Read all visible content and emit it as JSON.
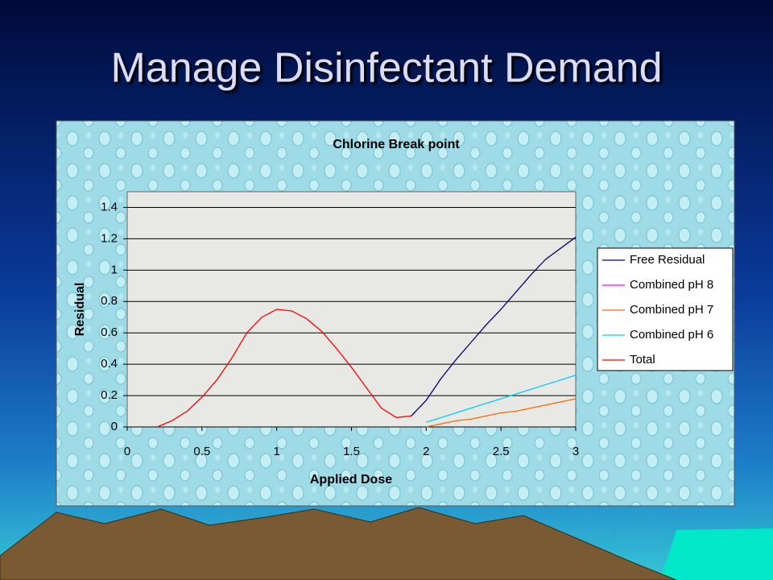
{
  "slide": {
    "title": "Manage Disinfectant Demand"
  },
  "chart_data": {
    "type": "line",
    "title": "Chlorine Break point",
    "x_label": "Applied Dose",
    "y_label": "Residual",
    "x": [
      0.2,
      0.3,
      0.4,
      0.5,
      0.6,
      0.7,
      0.8,
      0.9,
      1.0,
      1.1,
      1.2,
      1.3,
      1.4,
      1.5,
      1.6,
      1.7,
      1.8,
      1.9,
      2.0,
      2.1,
      2.2,
      2.3,
      2.4,
      2.5,
      2.6,
      2.7,
      2.8,
      2.9,
      3.0
    ],
    "series": [
      {
        "name": "Free Residual",
        "color": "#000080",
        "values": [
          null,
          null,
          null,
          null,
          null,
          null,
          null,
          null,
          null,
          null,
          null,
          null,
          null,
          null,
          null,
          null,
          null,
          0.07,
          0.17,
          0.31,
          0.43,
          0.54,
          0.65,
          0.75,
          0.86,
          0.97,
          1.07,
          1.14,
          1.21
        ]
      },
      {
        "name": "Combined pH 8",
        "color": "#ff00ff",
        "values": [
          null,
          null,
          null,
          null,
          null,
          null,
          null,
          null,
          null,
          null,
          null,
          null,
          null,
          null,
          null,
          null,
          null,
          null,
          null,
          null,
          null,
          null,
          null,
          null,
          null,
          null,
          null,
          null,
          null
        ]
      },
      {
        "name": "Combined pH 7",
        "color": "#ff6600",
        "values": [
          null,
          null,
          null,
          null,
          null,
          null,
          null,
          null,
          null,
          null,
          null,
          null,
          null,
          null,
          null,
          null,
          null,
          null,
          0,
          0.02,
          0.04,
          0.05,
          0.07,
          0.09,
          0.1,
          0.12,
          0.14,
          0.16,
          0.18
        ]
      },
      {
        "name": "Combined pH 6",
        "color": "#00ccff",
        "values": [
          null,
          null,
          null,
          null,
          null,
          null,
          null,
          null,
          null,
          null,
          null,
          null,
          null,
          null,
          null,
          null,
          null,
          null,
          0.03,
          0.06,
          0.09,
          0.12,
          0.15,
          0.18,
          0.21,
          0.24,
          0.27,
          0.3,
          0.33
        ]
      },
      {
        "name": "Total",
        "color": "#ff0000",
        "values": [
          0,
          0.04,
          0.1,
          0.19,
          0.3,
          0.44,
          0.6,
          0.7,
          0.75,
          0.74,
          0.69,
          0.61,
          0.5,
          0.38,
          0.25,
          0.12,
          0.06,
          0.07,
          null,
          null,
          null,
          null,
          null,
          null,
          null,
          null,
          null,
          null,
          null
        ]
      }
    ],
    "xlim": [
      0,
      3
    ],
    "xticks": [
      0,
      0.5,
      1,
      1.5,
      2,
      2.5,
      3
    ],
    "ylim": [
      0,
      1.5
    ],
    "yticks": [
      0,
      0.2,
      0.4,
      0.6,
      0.8,
      1,
      1.2,
      1.4
    ],
    "grid": true,
    "legend": "right"
  }
}
